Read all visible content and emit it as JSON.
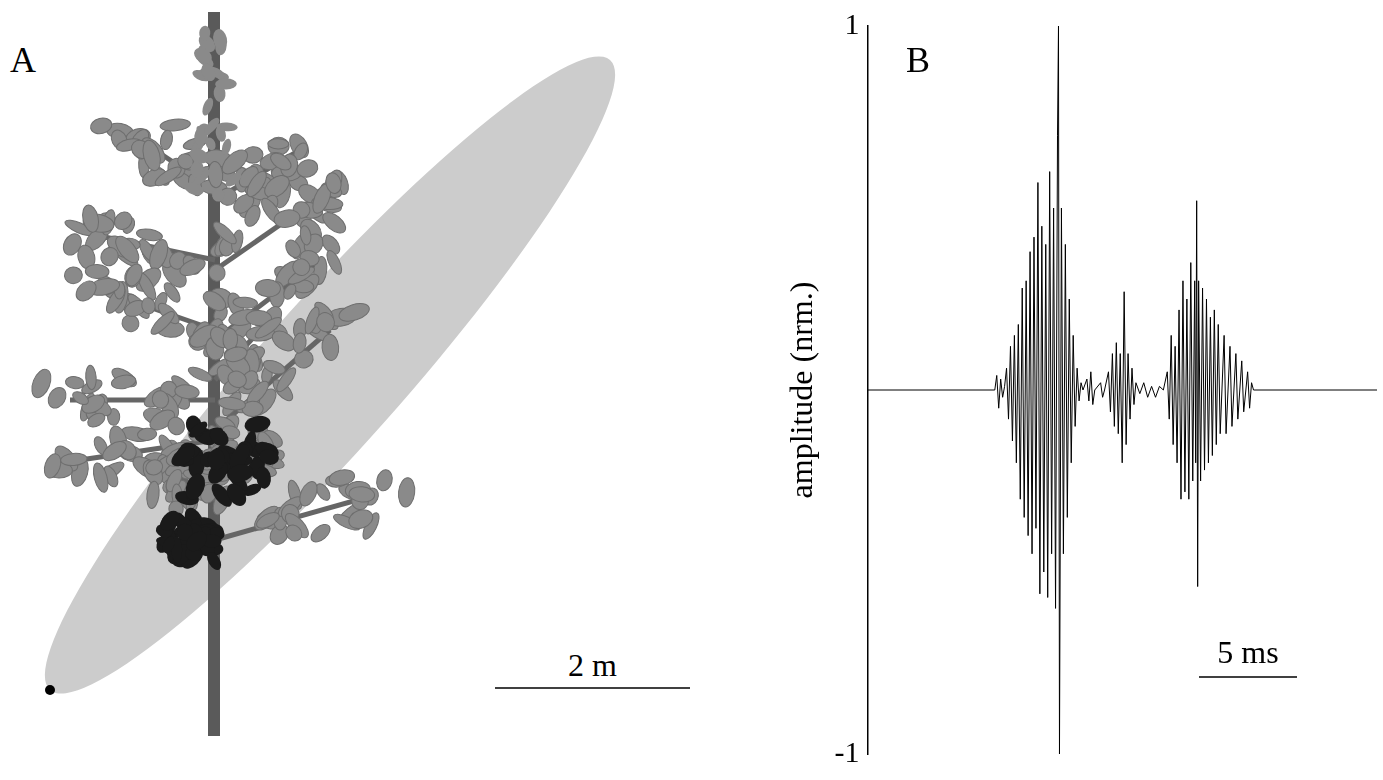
{
  "panel_a": {
    "label": "A",
    "scale_bar": {
      "label": "2 m",
      "length": 2
    }
  },
  "chart_data": {
    "panel_label": "B",
    "type": "line",
    "y_label": "amplitude (nrm.)",
    "color": "#000000",
    "grid": false,
    "tick_labels": "y",
    "xlim": [
      0,
      26
    ],
    "ylim": [
      -1,
      1
    ],
    "yticks": [
      -1,
      1
    ],
    "scale_bar": {
      "label": "5 ms",
      "length": 5
    },
    "x": [
      0,
      6.5,
      6.6,
      6.7,
      6.8,
      6.9,
      7.0,
      7.1,
      7.2,
      7.3,
      7.4,
      7.5,
      7.6,
      7.7,
      7.8,
      7.9,
      8.0,
      8.1,
      8.2,
      8.3,
      8.4,
      8.5,
      8.6,
      8.7,
      8.8,
      8.9,
      9.0,
      9.1,
      9.2,
      9.3,
      9.4,
      9.5,
      9.6,
      9.7,
      9.75,
      9.8,
      9.9,
      10.0,
      10.1,
      10.2,
      10.3,
      10.4,
      10.5,
      10.6,
      10.7,
      10.8,
      10.9,
      11.0,
      11.2,
      11.3,
      11.4,
      11.5,
      11.6,
      11.9,
      12.0,
      12.1,
      12.3,
      12.4,
      12.5,
      12.6,
      12.7,
      12.8,
      12.9,
      13.0,
      13.1,
      13.2,
      13.3,
      13.4,
      13.5,
      13.6,
      13.7,
      13.9,
      14.1,
      14.3,
      14.5,
      14.7,
      14.9,
      15.1,
      15.3,
      15.4,
      15.5,
      15.6,
      15.7,
      15.8,
      15.9,
      16.0,
      16.1,
      16.2,
      16.3,
      16.4,
      16.5,
      16.6,
      16.7,
      16.75,
      16.8,
      16.85,
      16.9,
      17.0,
      17.1,
      17.2,
      17.3,
      17.4,
      17.5,
      17.6,
      17.7,
      17.8,
      17.9,
      18.0,
      18.2,
      18.3,
      18.5,
      18.6,
      18.8,
      18.9,
      19.1,
      19.2,
      19.4,
      19.5,
      19.6,
      19.7,
      26
    ],
    "values": [
      0,
      0,
      0.04,
      -0.05,
      0.03,
      -0.02,
      0.01,
      0.06,
      -0.08,
      0.12,
      -0.14,
      0.15,
      -0.2,
      0.18,
      -0.3,
      0.28,
      -0.35,
      0.3,
      -0.4,
      0.38,
      -0.45,
      0.42,
      -0.38,
      0.57,
      -0.56,
      0.45,
      -0.5,
      0.4,
      -0.57,
      0.6,
      -0.45,
      0.5,
      -0.6,
      0.7,
      1.0,
      -1.0,
      0.5,
      -0.45,
      0.4,
      -0.35,
      0.25,
      -0.2,
      0.15,
      -0.1,
      0.06,
      -0.03,
      0.02,
      0,
      0.03,
      -0.03,
      0.05,
      -0.04,
      0,
      0.02,
      -0.02,
      0,
      0.05,
      -0.06,
      0.1,
      -0.1,
      0.13,
      -0.12,
      0.1,
      -0.2,
      0.27,
      -0.15,
      0.1,
      -0.08,
      0.06,
      -0.04,
      0.02,
      -0.01,
      0.02,
      -0.02,
      0.01,
      -0.02,
      0.01,
      0,
      0.05,
      -0.08,
      0.15,
      -0.15,
      0.12,
      -0.2,
      0.22,
      -0.3,
      0.3,
      -0.28,
      0.25,
      -0.3,
      0.35,
      -0.25,
      0.3,
      -0.2,
      0.52,
      -0.54,
      0.3,
      -0.25,
      0.28,
      -0.22,
      0.25,
      -0.2,
      0.2,
      -0.18,
      0.22,
      -0.15,
      0.18,
      -0.12,
      0.15,
      -0.12,
      0.12,
      -0.1,
      0.1,
      -0.08,
      0.08,
      -0.06,
      0.05,
      -0.05,
      0.02,
      0,
      0
    ]
  }
}
